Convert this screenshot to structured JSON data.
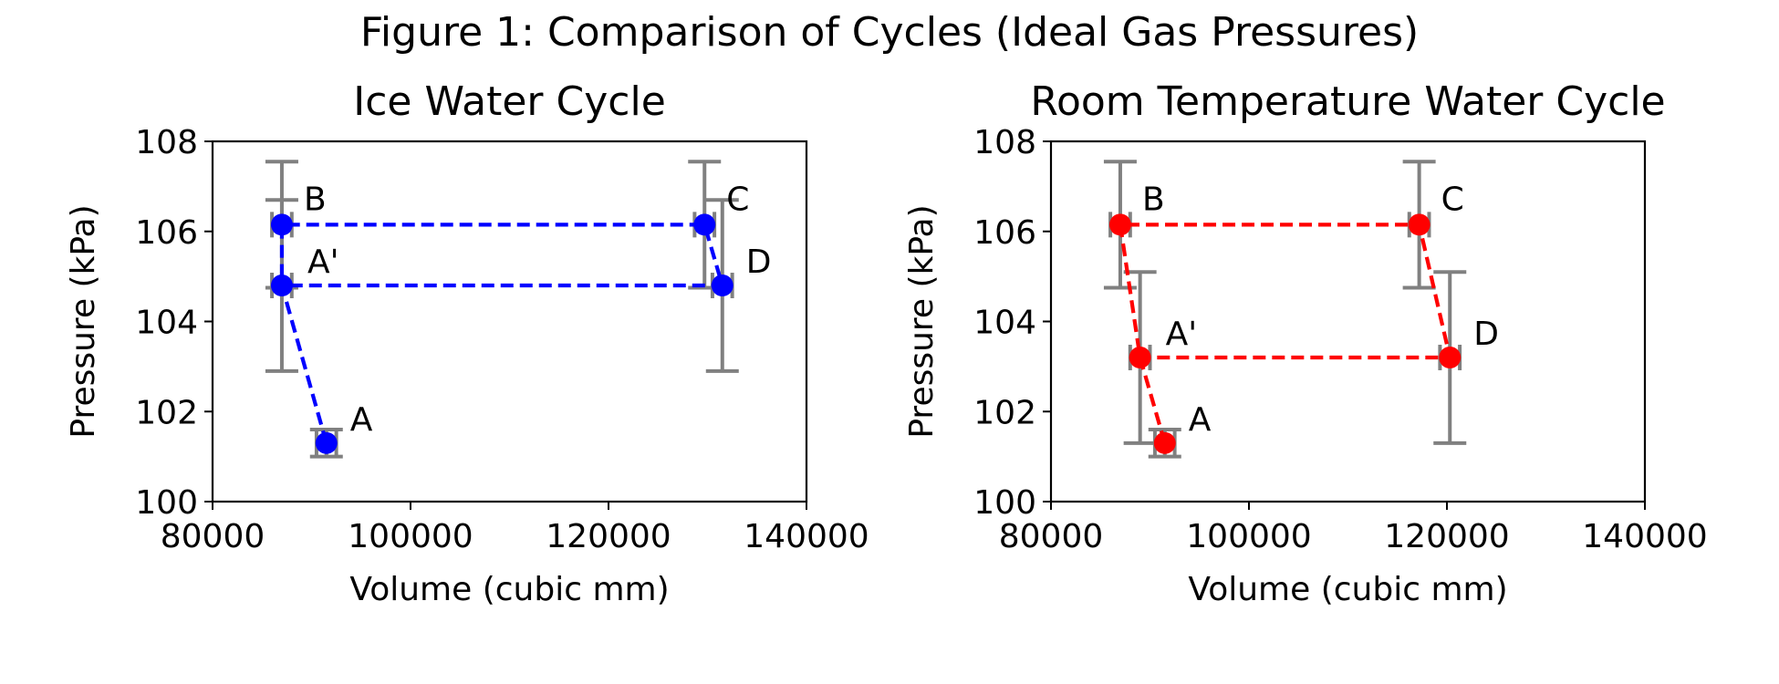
{
  "figure": {
    "title": "Figure 1: Comparison of Cycles (Ideal Gas Pressures)"
  },
  "chart_data": [
    {
      "type": "line",
      "title": "Ice Water Cycle",
      "xlabel": "Volume (cubic mm)",
      "ylabel": "Pressure (kPa)",
      "xlim": [
        80000,
        140000
      ],
      "ylim": [
        100,
        108
      ],
      "xticks": [
        "80000",
        "100000",
        "120000",
        "140000"
      ],
      "yticks": [
        "100",
        "102",
        "104",
        "106",
        "108"
      ],
      "grid": false,
      "line_color": "#0000ff",
      "errorbar_color": "#808080",
      "path_order": [
        "A",
        "A'",
        "B",
        "C",
        "D",
        "A'"
      ],
      "points": [
        {
          "label": "A",
          "x": 91500,
          "y": 101.3,
          "xerr": 1000,
          "yerr": 0.3
        },
        {
          "label": "B",
          "x": 87000,
          "y": 106.15,
          "xerr": 1000,
          "yerr": 1.4
        },
        {
          "label": "A'",
          "x": 87000,
          "y": 104.8,
          "xerr": 1000,
          "yerr": 1.9
        },
        {
          "label": "C",
          "x": 129700,
          "y": 106.15,
          "xerr": 1000,
          "yerr": 1.4
        },
        {
          "label": "D",
          "x": 131500,
          "y": 104.8,
          "xerr": 1000,
          "yerr": 1.9
        }
      ]
    },
    {
      "type": "line",
      "title": "Room Temperature Water Cycle",
      "xlabel": "Volume (cubic mm)",
      "ylabel": "Pressure (kPa)",
      "xlim": [
        80000,
        140000
      ],
      "ylim": [
        100,
        108
      ],
      "xticks": [
        "80000",
        "100000",
        "120000",
        "140000"
      ],
      "yticks": [
        "100",
        "102",
        "104",
        "106",
        "108"
      ],
      "grid": false,
      "line_color": "#ff0000",
      "errorbar_color": "#808080",
      "path_order": [
        "A",
        "A'",
        "B",
        "C",
        "D",
        "A'"
      ],
      "points": [
        {
          "label": "A",
          "x": 91500,
          "y": 101.3,
          "xerr": 1000,
          "yerr": 0.3
        },
        {
          "label": "B",
          "x": 87000,
          "y": 106.15,
          "xerr": 1000,
          "yerr": 1.4
        },
        {
          "label": "A'",
          "x": 89000,
          "y": 103.2,
          "xerr": 1000,
          "yerr": 1.9
        },
        {
          "label": "C",
          "x": 117200,
          "y": 106.15,
          "xerr": 1000,
          "yerr": 1.4
        },
        {
          "label": "D",
          "x": 120300,
          "y": 103.2,
          "xerr": 1000,
          "yerr": 1.9
        }
      ]
    }
  ]
}
